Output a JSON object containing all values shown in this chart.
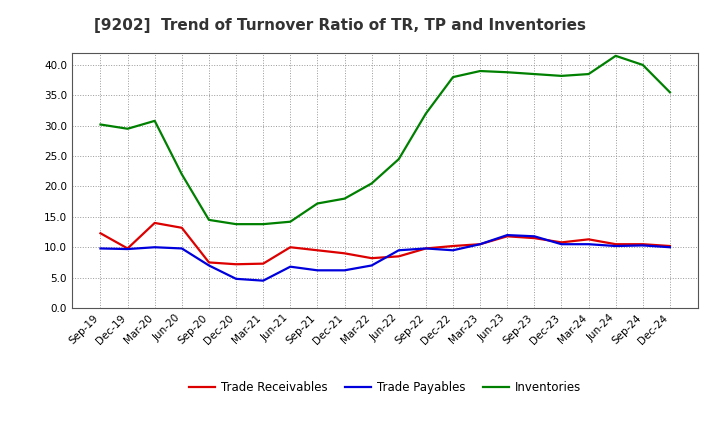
{
  "title": "[9202]  Trend of Turnover Ratio of TR, TP and Inventories",
  "x_labels": [
    "Sep-19",
    "Dec-19",
    "Mar-20",
    "Jun-20",
    "Sep-20",
    "Dec-20",
    "Mar-21",
    "Jun-21",
    "Sep-21",
    "Dec-21",
    "Mar-22",
    "Jun-22",
    "Sep-22",
    "Dec-22",
    "Mar-23",
    "Jun-23",
    "Sep-23",
    "Dec-23",
    "Mar-24",
    "Jun-24",
    "Sep-24",
    "Dec-24"
  ],
  "trade_receivables": [
    12.3,
    9.8,
    14.0,
    13.2,
    7.5,
    7.2,
    7.3,
    10.0,
    9.5,
    9.0,
    8.2,
    8.5,
    9.8,
    10.2,
    10.5,
    11.8,
    11.5,
    10.8,
    11.3,
    10.5,
    10.5,
    10.2
  ],
  "trade_payables": [
    9.8,
    9.7,
    10.0,
    9.8,
    7.0,
    4.8,
    4.5,
    6.8,
    6.2,
    6.2,
    7.0,
    9.5,
    9.8,
    9.5,
    10.5,
    12.0,
    11.8,
    10.5,
    10.5,
    10.2,
    10.3,
    10.0
  ],
  "inventories": [
    30.2,
    29.5,
    30.8,
    22.0,
    14.5,
    13.8,
    13.8,
    14.2,
    17.2,
    18.0,
    20.5,
    24.5,
    32.0,
    38.0,
    39.0,
    38.8,
    38.5,
    38.2,
    38.5,
    41.5,
    40.0,
    35.5
  ],
  "tr_color": "#dd0000",
  "tp_color": "#0000dd",
  "inv_color": "#008000",
  "ylim": [
    0.0,
    42.0
  ],
  "yticks": [
    0.0,
    5.0,
    10.0,
    15.0,
    20.0,
    25.0,
    30.0,
    35.0,
    40.0
  ],
  "legend_labels": [
    "Trade Receivables",
    "Trade Payables",
    "Inventories"
  ],
  "figsize": [
    7.2,
    4.4
  ],
  "dpi": 100,
  "title_fontsize": 11,
  "axis_fontsize": 7.5,
  "legend_fontsize": 8.5,
  "grid_color": "#999999",
  "background_color": "#ffffff",
  "plot_bg_color": "#ffffff"
}
